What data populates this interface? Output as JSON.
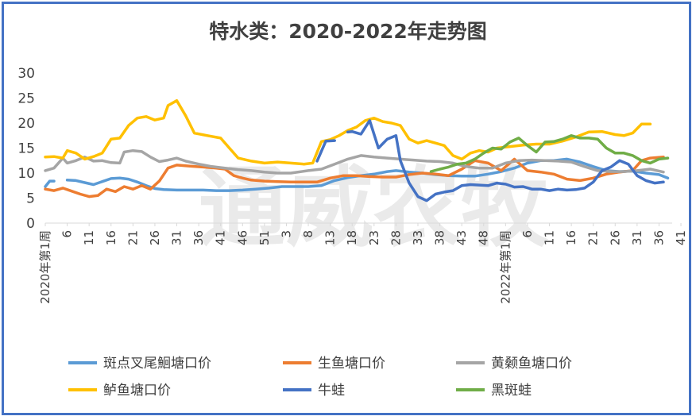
{
  "chart_data": {
    "type": "line",
    "title": "特水类：2020-2022年走势图",
    "watermark": "通威农牧",
    "ylim": [
      0,
      30
    ],
    "yticks": [
      0,
      5,
      10,
      15,
      20,
      25,
      30
    ],
    "xticks": [
      "2020年第1周",
      "6",
      "11",
      "16",
      "21",
      "26",
      "31",
      "36",
      "41",
      "46",
      "51",
      "3",
      "8",
      "13",
      "18",
      "23",
      "28",
      "33",
      "38",
      "43",
      "48",
      "2022年第1周",
      "6",
      "11",
      "16",
      "21",
      "26",
      "31",
      "36",
      "41"
    ],
    "grid": false,
    "legend_position": "bottom",
    "n_weeks": 144,
    "series": [
      {
        "name": "斑点叉尾鮰塘口价",
        "color": "#5b9bd5",
        "points": [
          [
            0,
            7.3
          ],
          [
            1,
            8.4
          ],
          [
            2,
            8.4
          ],
          [
            4,
            null
          ],
          [
            5,
            8.6
          ],
          [
            7,
            8.5
          ],
          [
            9,
            8.1
          ],
          [
            11,
            7.7
          ],
          [
            13,
            8.3
          ],
          [
            15,
            8.9
          ],
          [
            17,
            9.0
          ],
          [
            19,
            8.8
          ],
          [
            21,
            8.2
          ],
          [
            23,
            7.5
          ],
          [
            25,
            6.9
          ],
          [
            27,
            6.7
          ],
          [
            30,
            6.6
          ],
          [
            33,
            6.6
          ],
          [
            36,
            6.6
          ],
          [
            39,
            6.5
          ],
          [
            42,
            6.5
          ],
          [
            45,
            6.6
          ],
          [
            48,
            6.8
          ],
          [
            51,
            7.0
          ],
          [
            54,
            7.3
          ],
          [
            57,
            7.3
          ],
          [
            60,
            7.3
          ],
          [
            63,
            7.5
          ],
          [
            66,
            8.5
          ],
          [
            69,
            9.1
          ],
          [
            72,
            9.5
          ],
          [
            75,
            9.8
          ],
          [
            78,
            10.3
          ],
          [
            80,
            10.5
          ],
          [
            83,
            10.2
          ],
          [
            86,
            10.0
          ],
          [
            89,
            9.7
          ],
          [
            92,
            9.5
          ],
          [
            95,
            9.4
          ],
          [
            98,
            9.4
          ],
          [
            101,
            9.8
          ],
          [
            104,
            10.3
          ],
          [
            107,
            11.0
          ],
          [
            110,
            12.0
          ],
          [
            113,
            12.5
          ],
          [
            116,
            12.5
          ],
          [
            119,
            12.8
          ],
          [
            122,
            12.2
          ],
          [
            125,
            11.3
          ],
          [
            128,
            10.5
          ],
          [
            131,
            10.3
          ],
          [
            134,
            10.4
          ],
          [
            137,
            10.0
          ],
          [
            140,
            9.7
          ],
          [
            142,
            9.0
          ]
        ]
      },
      {
        "name": "生鱼塘口价",
        "color": "#ed7d31",
        "points": [
          [
            0,
            6.8
          ],
          [
            2,
            6.5
          ],
          [
            4,
            7.0
          ],
          [
            6,
            6.4
          ],
          [
            8,
            5.8
          ],
          [
            10,
            5.3
          ],
          [
            12,
            5.5
          ],
          [
            14,
            6.8
          ],
          [
            16,
            6.3
          ],
          [
            18,
            7.3
          ],
          [
            20,
            6.8
          ],
          [
            22,
            7.5
          ],
          [
            24,
            6.8
          ],
          [
            26,
            8.4
          ],
          [
            28,
            11.0
          ],
          [
            30,
            11.6
          ],
          [
            33,
            11.4
          ],
          [
            36,
            11.2
          ],
          [
            39,
            11.0
          ],
          [
            41,
            10.8
          ],
          [
            43,
            9.5
          ],
          [
            45,
            9.0
          ],
          [
            47,
            8.6
          ],
          [
            50,
            8.4
          ],
          [
            53,
            8.3
          ],
          [
            56,
            8.2
          ],
          [
            59,
            8.2
          ],
          [
            62,
            8.2
          ],
          [
            65,
            9.0
          ],
          [
            68,
            9.5
          ],
          [
            71,
            9.5
          ],
          [
            74,
            9.3
          ],
          [
            77,
            9.2
          ],
          [
            80,
            9.2
          ],
          [
            83,
            9.7
          ],
          [
            86,
            10.0
          ],
          [
            89,
            9.8
          ],
          [
            92,
            9.5
          ],
          [
            95,
            10.8
          ],
          [
            98,
            12.5
          ],
          [
            101,
            12.0
          ],
          [
            104,
            10.5
          ],
          [
            107,
            12.8
          ],
          [
            110,
            10.5
          ],
          [
            113,
            10.2
          ],
          [
            116,
            9.8
          ],
          [
            119,
            8.8
          ],
          [
            122,
            8.5
          ],
          [
            125,
            9.0
          ],
          [
            128,
            9.8
          ],
          [
            131,
            10.2
          ],
          [
            134,
            10.5
          ],
          [
            136,
            12.5
          ],
          [
            138,
            13.0
          ],
          [
            141,
            13.2
          ]
        ]
      },
      {
        "name": "黄颡鱼塘口价",
        "color": "#a5a5a5",
        "points": [
          [
            0,
            10.5
          ],
          [
            2,
            11.0
          ],
          [
            4,
            13.0
          ],
          [
            5,
            12.0
          ],
          [
            7,
            12.5
          ],
          [
            9,
            13.2
          ],
          [
            11,
            12.4
          ],
          [
            13,
            12.5
          ],
          [
            15,
            12.1
          ],
          [
            17,
            12.0
          ],
          [
            18,
            14.2
          ],
          [
            20,
            14.5
          ],
          [
            22,
            14.3
          ],
          [
            24,
            13.2
          ],
          [
            26,
            12.3
          ],
          [
            28,
            12.6
          ],
          [
            30,
            13.0
          ],
          [
            32,
            12.4
          ],
          [
            35,
            11.8
          ],
          [
            38,
            11.3
          ],
          [
            41,
            11.0
          ],
          [
            44,
            10.7
          ],
          [
            47,
            10.5
          ],
          [
            50,
            10.2
          ],
          [
            53,
            10.0
          ],
          [
            56,
            10.0
          ],
          [
            60,
            10.5
          ],
          [
            63,
            10.8
          ],
          [
            66,
            11.8
          ],
          [
            69,
            12.8
          ],
          [
            72,
            13.5
          ],
          [
            75,
            13.2
          ],
          [
            78,
            13.0
          ],
          [
            81,
            12.8
          ],
          [
            84,
            12.6
          ],
          [
            87,
            12.4
          ],
          [
            90,
            12.3
          ],
          [
            93,
            12.0
          ],
          [
            96,
            11.3
          ],
          [
            99,
            11.0
          ],
          [
            102,
            11.0
          ],
          [
            105,
            12.0
          ],
          [
            108,
            12.5
          ],
          [
            111,
            12.6
          ],
          [
            114,
            12.5
          ],
          [
            117,
            12.4
          ],
          [
            120,
            12.2
          ],
          [
            123,
            11.3
          ],
          [
            126,
            10.5
          ],
          [
            129,
            10.3
          ],
          [
            132,
            10.3
          ],
          [
            135,
            10.5
          ],
          [
            138,
            10.8
          ],
          [
            141,
            10.2
          ]
        ]
      },
      {
        "name": "鲈鱼塘口价",
        "color": "#ffc000",
        "points": [
          [
            0,
            13.2
          ],
          [
            2,
            13.3
          ],
          [
            4,
            13.0
          ],
          [
            5,
            14.5
          ],
          [
            7,
            14.0
          ],
          [
            9,
            12.8
          ],
          [
            11,
            13.3
          ],
          [
            13,
            14.0
          ],
          [
            15,
            16.8
          ],
          [
            17,
            17.0
          ],
          [
            19,
            19.5
          ],
          [
            21,
            21.0
          ],
          [
            23,
            21.3
          ],
          [
            25,
            20.6
          ],
          [
            27,
            21.0
          ],
          [
            28,
            23.5
          ],
          [
            30,
            24.5
          ],
          [
            32,
            21.5
          ],
          [
            34,
            18.0
          ],
          [
            37,
            17.5
          ],
          [
            40,
            17.0
          ],
          [
            42,
            15.0
          ],
          [
            44,
            13.0
          ],
          [
            47,
            12.4
          ],
          [
            50,
            12.0
          ],
          [
            53,
            12.2
          ],
          [
            56,
            12.0
          ],
          [
            59,
            11.8
          ],
          [
            61,
            12.0
          ],
          [
            63,
            16.3
          ],
          [
            65,
            16.7
          ],
          [
            67,
            17.5
          ],
          [
            69,
            18.5
          ],
          [
            71,
            19.2
          ],
          [
            73,
            20.5
          ],
          [
            75,
            21.0
          ],
          [
            77,
            20.3
          ],
          [
            79,
            20.0
          ],
          [
            81,
            19.5
          ],
          [
            83,
            16.8
          ],
          [
            85,
            16.0
          ],
          [
            87,
            16.5
          ],
          [
            89,
            16.0
          ],
          [
            91,
            15.5
          ],
          [
            93,
            13.5
          ],
          [
            95,
            12.8
          ],
          [
            97,
            14.0
          ],
          [
            99,
            14.5
          ],
          [
            101,
            14.2
          ],
          [
            103,
            15.0
          ],
          [
            106,
            15.3
          ],
          [
            109,
            15.6
          ],
          [
            112,
            15.8
          ],
          [
            115,
            15.8
          ],
          [
            118,
            16.4
          ],
          [
            121,
            17.2
          ],
          [
            124,
            18.2
          ],
          [
            127,
            18.3
          ],
          [
            130,
            17.7
          ],
          [
            132,
            17.5
          ],
          [
            134,
            18.0
          ],
          [
            136,
            19.8
          ],
          [
            138,
            19.8
          ]
        ]
      },
      {
        "name": "牛蛙",
        "color": "#4472c4",
        "points": [
          [
            62,
            12.4
          ],
          [
            64,
            16.4
          ],
          [
            66,
            16.5
          ],
          [
            68,
            null
          ],
          [
            69,
            18.2
          ],
          [
            70,
            18.3
          ],
          [
            72,
            17.8
          ],
          [
            74,
            20.5
          ],
          [
            76,
            15.0
          ],
          [
            78,
            16.8
          ],
          [
            80,
            17.5
          ],
          [
            81,
            12.5
          ],
          [
            83,
            8.0
          ],
          [
            85,
            5.3
          ],
          [
            87,
            4.5
          ],
          [
            89,
            5.8
          ],
          [
            91,
            6.2
          ],
          [
            93,
            6.5
          ],
          [
            95,
            7.5
          ],
          [
            97,
            7.7
          ],
          [
            99,
            7.6
          ],
          [
            101,
            7.5
          ],
          [
            103,
            8.0
          ],
          [
            105,
            7.8
          ],
          [
            107,
            7.2
          ],
          [
            109,
            7.3
          ],
          [
            111,
            6.8
          ],
          [
            113,
            6.8
          ],
          [
            115,
            6.5
          ],
          [
            117,
            6.8
          ],
          [
            119,
            6.6
          ],
          [
            121,
            6.7
          ],
          [
            123,
            7.0
          ],
          [
            125,
            8.2
          ],
          [
            127,
            10.5
          ],
          [
            129,
            11.2
          ],
          [
            131,
            12.5
          ],
          [
            133,
            11.8
          ],
          [
            135,
            9.5
          ],
          [
            137,
            8.5
          ],
          [
            139,
            8.0
          ],
          [
            141,
            8.2
          ]
        ]
      },
      {
        "name": "黑斑蛙",
        "color": "#70ad47",
        "points": [
          [
            88,
            10.3
          ],
          [
            90,
            10.8
          ],
          [
            92,
            11.2
          ],
          [
            94,
            11.8
          ],
          [
            96,
            12.0
          ],
          [
            98,
            12.8
          ],
          [
            100,
            14.0
          ],
          [
            102,
            15.0
          ],
          [
            104,
            14.8
          ],
          [
            106,
            16.2
          ],
          [
            108,
            17.0
          ],
          [
            110,
            15.5
          ],
          [
            112,
            14.2
          ],
          [
            114,
            16.2
          ],
          [
            116,
            16.3
          ],
          [
            118,
            16.8
          ],
          [
            120,
            17.5
          ],
          [
            122,
            17.0
          ],
          [
            124,
            17.0
          ],
          [
            126,
            16.8
          ],
          [
            128,
            15.0
          ],
          [
            130,
            14.0
          ],
          [
            132,
            14.0
          ],
          [
            134,
            13.5
          ],
          [
            136,
            12.5
          ],
          [
            138,
            12.0
          ],
          [
            140,
            12.8
          ],
          [
            142,
            13.0
          ]
        ]
      }
    ]
  }
}
